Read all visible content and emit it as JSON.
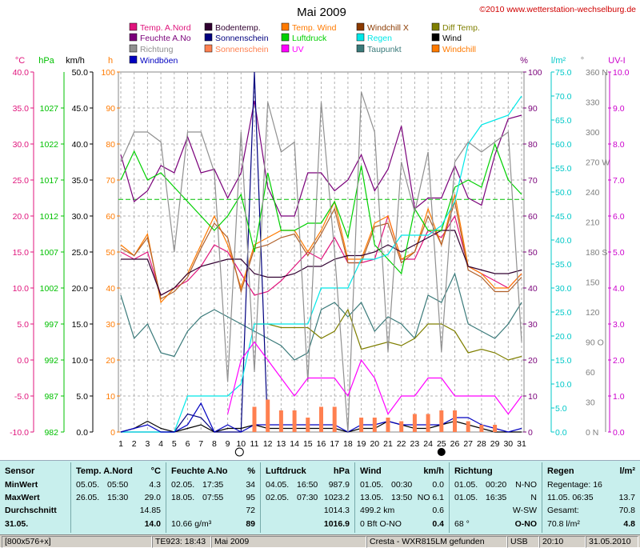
{
  "title": "Mai 2009",
  "copyright": "©2010 www.wetterstation-wechselburg.de",
  "legend": [
    {
      "label": "Temp. A.Nord",
      "color": "#e0147c"
    },
    {
      "label": "Bodentemp.",
      "color": "#300030"
    },
    {
      "label": "Temp. Wind",
      "color": "#ff7a00"
    },
    {
      "label": "Windchill X",
      "color": "#8b3a00"
    },
    {
      "label": "Diff Temp.",
      "color": "#7f7f00"
    },
    {
      "label": "Feuchte A.No",
      "color": "#7a007a"
    },
    {
      "label": "Sonnenschein",
      "color": "#00007f"
    },
    {
      "label": "Luftdruck",
      "color": "#00d000"
    },
    {
      "label": "Regen",
      "color": "#00e8e8"
    },
    {
      "label": "Wind",
      "color": "#000000"
    },
    {
      "label": "Richtung",
      "color": "#909090"
    },
    {
      "label": "Sonnenschein",
      "color": "#ff8050"
    },
    {
      "label": "UV",
      "color": "#ff00ff"
    },
    {
      "label": "Taupunkt",
      "color": "#3a7a7a"
    },
    {
      "label": "Windchill",
      "color": "#ff7a00"
    },
    {
      "label": "Windböen",
      "color": "#0000c0"
    }
  ],
  "axes": {
    "temp": {
      "unit": "°C",
      "ticks": [
        "40.0",
        "35.0",
        "30.0",
        "25.0",
        "20.0",
        "15.0",
        "10.0",
        "5.0",
        "0.0",
        "-5.0",
        "-10.0"
      ],
      "color": "#e0147c"
    },
    "hpa": {
      "unit": "hPa",
      "ticks": [
        "1027",
        "1022",
        "1017",
        "1012",
        "1007",
        "1002",
        "997",
        "992",
        "987",
        "982"
      ],
      "color": "#00c000"
    },
    "kmh": {
      "unit": "km/h",
      "ticks": [
        "50.0",
        "45.0",
        "40.0",
        "35.0",
        "30.0",
        "25.0",
        "20.0",
        "15.0",
        "10.0",
        "5.0",
        "0.0"
      ],
      "color": "#000000"
    },
    "h": {
      "unit": "h",
      "ticks": [
        "100",
        "90",
        "80",
        "70",
        "60",
        "50",
        "40",
        "30",
        "20",
        "10",
        "0"
      ],
      "color": "#ff7a00"
    },
    "pct": {
      "unit": "%",
      "ticks": [
        "100",
        "90",
        "80",
        "70",
        "60",
        "50",
        "40",
        "30",
        "20",
        "10",
        "0"
      ],
      "color": "#7a007a"
    },
    "rain": {
      "unit": "l/m²",
      "ticks": [
        "75.0",
        "70.0",
        "65.0",
        "60.0",
        "55.0",
        "50.0",
        "45.0",
        "40.0",
        "35.0",
        "30.0",
        "25.0",
        "20.0",
        "15.0",
        "10.0",
        "5.0",
        "0.0"
      ],
      "color": "#00c8c8"
    },
    "dir": {
      "unit": "°",
      "ticks": [
        "360 N",
        "330",
        "300",
        "270 W",
        "240",
        "210",
        "180 S",
        "150",
        "120",
        "90  O",
        "60",
        "30",
        "0  N"
      ],
      "color": "#808080"
    },
    "uv": {
      "unit": "UV-I",
      "ticks": [
        "10.0",
        "9.0",
        "8.0",
        "7.0",
        "6.0",
        "5.0",
        "4.0",
        "3.0",
        "2.0",
        "1.0",
        "0.0"
      ],
      "color": "#cc00cc"
    },
    "days": [
      "1",
      "2",
      "3",
      "4",
      "5",
      "6",
      "7",
      "8",
      "9",
      "10",
      "11",
      "12",
      "13",
      "14",
      "15",
      "16",
      "17",
      "18",
      "19",
      "20",
      "21",
      "22",
      "23",
      "24",
      "25",
      "26",
      "27",
      "28",
      "29",
      "30",
      "31"
    ]
  },
  "chart_data": {
    "type": "line",
    "title": "Mai 2009",
    "x": [
      1,
      2,
      3,
      4,
      5,
      6,
      7,
      8,
      9,
      10,
      11,
      12,
      13,
      14,
      15,
      16,
      17,
      18,
      19,
      20,
      21,
      22,
      23,
      24,
      25,
      26,
      27,
      28,
      29,
      30,
      31
    ],
    "series": [
      {
        "name": "Temp. A.Nord",
        "color": "#e0147c",
        "axis": "temp",
        "values": [
          15,
          14,
          15,
          9,
          10,
          11,
          13,
          16,
          15,
          12,
          9,
          9.5,
          11,
          13,
          15,
          14,
          17,
          13.5,
          13.5,
          14,
          20,
          14,
          14,
          18,
          17,
          20,
          13,
          12,
          11,
          10,
          12
        ]
      },
      {
        "name": "Temp. Wind",
        "color": "#ff7a00",
        "axis": "temp",
        "values": [
          16,
          14.5,
          17.5,
          8,
          10,
          12,
          16,
          20,
          16,
          10,
          16,
          17,
          18,
          18,
          15,
          18,
          22,
          14,
          14,
          19,
          20,
          14,
          15,
          21,
          16,
          23,
          13,
          12,
          10,
          10,
          12
        ]
      },
      {
        "name": "Windchill",
        "color": "#b0602a",
        "axis": "temp",
        "values": [
          15.5,
          14.5,
          17,
          8.5,
          9.5,
          11.5,
          15.5,
          19,
          17,
          9.5,
          15.5,
          16,
          17,
          17.5,
          14.5,
          17.5,
          21,
          13.5,
          13.5,
          18.5,
          19,
          13.5,
          15,
          20,
          16,
          22,
          12.5,
          11.5,
          9.5,
          9.5,
          11.5
        ]
      },
      {
        "name": "Bodentemp.",
        "color": "#300030",
        "axis": "temp",
        "values": [
          14,
          14,
          14,
          9,
          10,
          12,
          13,
          13.5,
          14,
          14,
          12,
          11.5,
          11.5,
          12,
          13,
          13,
          14,
          14.5,
          14.5,
          15,
          16,
          15,
          16,
          17,
          18,
          18,
          13,
          12.5,
          12,
          12,
          12.5
        ]
      },
      {
        "name": "Taupunkt",
        "color": "#3a7a7a",
        "axis": "temp",
        "values": [
          9,
          3,
          5,
          1,
          0.5,
          4,
          6,
          7,
          6,
          5,
          4,
          3,
          2,
          0,
          1,
          7,
          8,
          6,
          8,
          4,
          6,
          5,
          3,
          9,
          8,
          12,
          5,
          4,
          3,
          5,
          8
        ]
      },
      {
        "name": "Diff Temp.",
        "color": "#7f7f00",
        "axis": "temp",
        "values": [
          null,
          null,
          null,
          null,
          null,
          null,
          null,
          null,
          null,
          null,
          5,
          5,
          4.5,
          4.5,
          4.5,
          3,
          4,
          7,
          1.5,
          2,
          2.5,
          2,
          3,
          5,
          5,
          4,
          1,
          1.5,
          1,
          0,
          0.5
        ]
      },
      {
        "name": "Feuchte A.No",
        "color": "#7a007a",
        "axis": "pct",
        "values": [
          77,
          64,
          67,
          74,
          72,
          82,
          72,
          73,
          65,
          72,
          92,
          68,
          60,
          60,
          72,
          72,
          67,
          70,
          77,
          67,
          73,
          85,
          62,
          65,
          65,
          74,
          65,
          63,
          77,
          87,
          88
        ]
      },
      {
        "name": "Sonnenschein",
        "color": "#00007f",
        "axis": "pct",
        "values": [
          0,
          0,
          0,
          0,
          0,
          5,
          4,
          0,
          0,
          0,
          100,
          0,
          null,
          null,
          null,
          null,
          null,
          null,
          null,
          null,
          null,
          null,
          null,
          null,
          null,
          null,
          null,
          null,
          null,
          null,
          null
        ]
      },
      {
        "name": "Luftdruck",
        "color": "#00d000",
        "axis": "hpa",
        "values": [
          1017,
          1021,
          1017,
          1018,
          1016,
          1014,
          1012,
          1010,
          1012,
          1015,
          1007,
          1018,
          1010,
          1010,
          1011,
          1011,
          1014,
          1009,
          1019,
          1008,
          1006,
          1004,
          1013,
          1010,
          1010,
          1016,
          1017,
          1016,
          1022,
          1017,
          1015
        ]
      },
      {
        "name": "Regen",
        "color": "#00e8e8",
        "axis": "rain",
        "values": [
          0,
          0,
          0,
          0,
          0,
          7.5,
          7.5,
          7.5,
          7.5,
          10,
          22.5,
          22.5,
          22.5,
          22.5,
          22.5,
          30,
          30,
          30,
          36,
          36,
          37,
          41,
          41,
          41,
          43,
          48,
          60,
          64,
          65,
          66,
          70
        ]
      },
      {
        "name": "Wind",
        "color": "#000000",
        "axis": "kmh",
        "values": [
          0,
          0.5,
          1.5,
          0.5,
          0,
          0.5,
          1,
          0,
          0.5,
          0.5,
          1,
          0.5,
          0.5,
          0.5,
          0.5,
          0.5,
          0.5,
          0,
          0.5,
          0.5,
          1.5,
          1,
          0.5,
          0.5,
          1,
          1.5,
          1,
          0.5,
          0,
          0,
          0
        ]
      },
      {
        "name": "Windböen",
        "color": "#0000c0",
        "axis": "kmh",
        "values": [
          0,
          0.5,
          1,
          0,
          0,
          1,
          4,
          0,
          1,
          0,
          1,
          1,
          1,
          1,
          1,
          1,
          1,
          0,
          1,
          1,
          1.5,
          1,
          1,
          1,
          1,
          2,
          2,
          1,
          0.5,
          0,
          0.5
        ]
      },
      {
        "name": "Richtung",
        "color": "#909090",
        "axis": "dir",
        "values": [
          270,
          300,
          300,
          290,
          180,
          300,
          300,
          260,
          50,
          300,
          60,
          330,
          280,
          290,
          50,
          330,
          180,
          0,
          340,
          300,
          80,
          270,
          220,
          280,
          80,
          270,
          290,
          280,
          290,
          300,
          90
        ]
      },
      {
        "name": "UV",
        "color": "#ff00ff",
        "axis": "uv",
        "values": [
          null,
          null,
          null,
          null,
          null,
          null,
          null,
          null,
          0.5,
          2,
          2.5,
          2,
          1.5,
          1,
          1.5,
          1.5,
          1.5,
          1,
          2,
          1.5,
          0.5,
          1,
          1,
          1.5,
          1.5,
          1,
          1,
          1,
          1,
          0.5,
          1
        ]
      },
      {
        "name": "Sonnenschein (Balken)",
        "color": "#ff8050",
        "axis": "h",
        "bars": true,
        "values": [
          0,
          0,
          0,
          0,
          0,
          0,
          0,
          0,
          0,
          0,
          7,
          9,
          6,
          6,
          4,
          7,
          7,
          0,
          4,
          4,
          4,
          3,
          5,
          5,
          6,
          6,
          3,
          2,
          2,
          0,
          0
        ]
      }
    ]
  },
  "panel": {
    "sensor": {
      "head": "Sensor",
      "rows": [
        "MinWert",
        "MaxWert",
        "Durchschnitt",
        "31.05."
      ]
    },
    "temp": {
      "head": "Temp. A.Nord",
      "unit": "°C",
      "min": {
        "date": "05.05.",
        "time": "05:50",
        "val": "4.3"
      },
      "max": {
        "date": "26.05.",
        "time": "15:30",
        "val": "29.0"
      },
      "avg": "14.85",
      "cur": "14.0"
    },
    "feuchte": {
      "head": "Feuchte A.No",
      "unit": "%",
      "min": {
        "date": "02.05.",
        "time": "17:35",
        "val": "34"
      },
      "max": {
        "date": "18.05.",
        "time": "07:55",
        "val": "95"
      },
      "avg": "72",
      "extra": "10.66 g/m³",
      "cur": "89"
    },
    "luft": {
      "head": "Luftdruck",
      "unit": "hPa",
      "min": {
        "date": "04.05.",
        "time": "16:50",
        "val": "987.9"
      },
      "max": {
        "date": "02.05.",
        "time": "07:30",
        "val": "1023.2"
      },
      "avg": "1014.3",
      "cur": "1016.9"
    },
    "wind": {
      "head": "Wind",
      "unit": "km/h",
      "min": {
        "date": "01.05.",
        "time": "00:30",
        "val": "0.0"
      },
      "max": {
        "date": "13.05.",
        "time": "13:50",
        "extra": "NO 6.1"
      },
      "avg_l": "499.2 km",
      "avg": "0.6",
      "cur_l": "0 Bft O-NO",
      "cur": "0.4"
    },
    "richtung": {
      "head": "Richtung",
      "min": {
        "date": "01.05.",
        "time": "00:20",
        "val": "N-NO"
      },
      "max": {
        "date": "01.05.",
        "time": "16:35",
        "val": "N"
      },
      "avg": "W-SW",
      "cur_l": "68 °",
      "cur": "O-NO"
    },
    "regen": {
      "head": "Regen",
      "unit": "l/m²",
      "r1_l": "Regentage: 16",
      "r2_l": "11.05.  06:35",
      "r2": "13.7",
      "r3_l": "Gesamt:",
      "r3": "70.8",
      "r4_l": "70.8 l/m²",
      "r4": "4.8"
    }
  },
  "status": {
    "size": "[800x576+x]",
    "te": "TE923: 18:43",
    "month": "Mai 2009",
    "device": "Cresta - WXR815LM gefunden",
    "usb": "USB",
    "time": "20:10",
    "date": "31.05.2010"
  }
}
